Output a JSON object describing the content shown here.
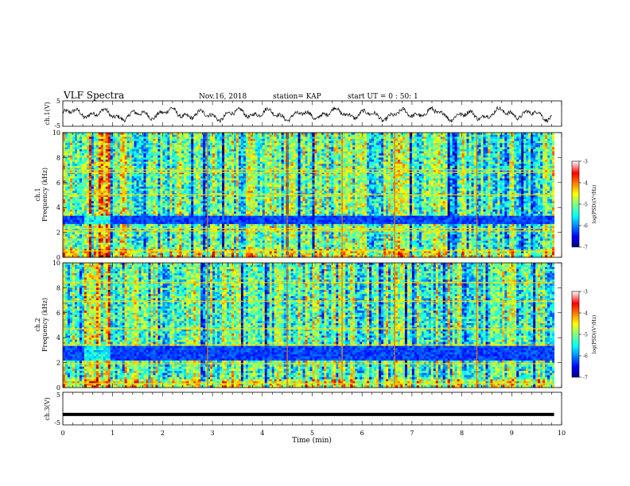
{
  "header": {
    "title": "VLF Spectra",
    "date": "Nov.16, 2018",
    "station": "station= KAP",
    "start": "start UT =  0 : 50: 1"
  },
  "chart_data": [
    {
      "type": "line",
      "title": "",
      "ylabel": "ch.1(V)",
      "ylim": [
        -5,
        5
      ],
      "yticks": [
        "5",
        "-5"
      ],
      "xlim": [
        0,
        10
      ],
      "note": "broadband waveform trace, oscillates roughly between -2.5 and +2 V across the whole interval",
      "color": "#000000"
    },
    {
      "type": "heatmap",
      "title": "",
      "ylabel": "ch.1\nFrequency (kHz)",
      "ylim": [
        0,
        10
      ],
      "yticks": [
        "0",
        "2",
        "4",
        "6",
        "8",
        "10"
      ],
      "xlim": [
        0,
        10
      ],
      "colorbar": {
        "label": "log(PSD)(V²/Hz)",
        "range": [
          -7,
          -3
        ],
        "ticks": [
          "-3",
          "-4",
          "-5",
          "-6",
          "-7"
        ]
      },
      "features": {
        "dark_band_khz": [
          2.7,
          3.4
        ],
        "strong_lines_khz": [
          0.5,
          2.1,
          2.3,
          5.0,
          6.8,
          7.0
        ],
        "early_block_min": [
          0.4,
          0.95
        ],
        "vertical_spike_min": [
          2.9,
          4.5,
          5.6,
          6.65,
          8.3
        ]
      }
    },
    {
      "type": "heatmap",
      "title": "",
      "ylabel": "ch.2\nFrequency (kHz)",
      "ylim": [
        0,
        10
      ],
      "yticks": [
        "0",
        "2",
        "4",
        "6",
        "8",
        "10"
      ],
      "xlim": [
        0,
        10
      ],
      "colorbar": {
        "label": "log(PSD)(V²/Hz)",
        "range": [
          -7,
          -3
        ],
        "ticks": [
          "-3",
          "-4",
          "-5",
          "-6",
          "-7"
        ]
      },
      "features": {
        "dark_band_khz": [
          2.1,
          3.3
        ],
        "strong_lines_khz": [
          0.3,
          1.9,
          3.4,
          4.7,
          6.9,
          8.4
        ],
        "early_block_min": [
          0.4,
          0.95
        ],
        "vertical_spike_min": [
          2.9,
          4.5,
          5.6,
          6.65,
          8.3
        ]
      }
    },
    {
      "type": "line",
      "title": "",
      "ylabel": "ch.3(V)",
      "ylim": [
        -5,
        5
      ],
      "yticks": [
        "5",
        "-5"
      ],
      "xlim": [
        0,
        10
      ],
      "xlabel": "Time  (min)",
      "xticks": [
        "0",
        "1",
        "2",
        "3",
        "4",
        "5",
        "6",
        "7",
        "8",
        "9",
        "10"
      ],
      "values_constant": -1.8,
      "color": "#000000"
    }
  ]
}
